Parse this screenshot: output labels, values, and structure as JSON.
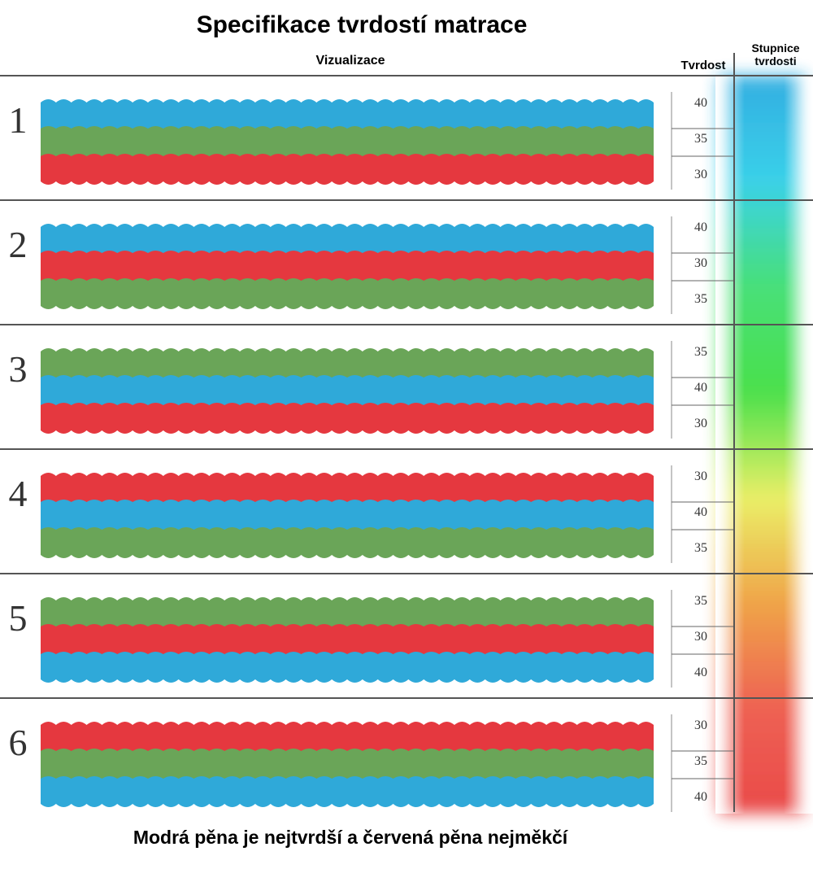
{
  "title": "Specifikace tvrdostí matrace",
  "headers": {
    "visualization": "Vizualizace",
    "hardness": "Tvrdost",
    "scale_line1": "Stupnice",
    "scale_line2": "tvrdosti"
  },
  "footer": "Modrá pěna je nejtvrdší a červená pěna nejměkčí",
  "colors": {
    "blue": "#2fa9d9",
    "green": "#6aa558",
    "red": "#e5383f",
    "divider": "#555555"
  },
  "hardness_by_color": {
    "blue": "40",
    "green": "35",
    "red": "30"
  },
  "mattresses": [
    {
      "number": "1",
      "layers": [
        "blue",
        "green",
        "red"
      ],
      "values": [
        "40",
        "35",
        "30"
      ]
    },
    {
      "number": "2",
      "layers": [
        "blue",
        "red",
        "green"
      ],
      "values": [
        "40",
        "30",
        "35"
      ]
    },
    {
      "number": "3",
      "layers": [
        "green",
        "blue",
        "red"
      ],
      "values": [
        "35",
        "40",
        "30"
      ]
    },
    {
      "number": "4",
      "layers": [
        "red",
        "blue",
        "green"
      ],
      "values": [
        "30",
        "40",
        "35"
      ]
    },
    {
      "number": "5",
      "layers": [
        "green",
        "red",
        "blue"
      ],
      "values": [
        "35",
        "30",
        "40"
      ]
    },
    {
      "number": "6",
      "layers": [
        "red",
        "green",
        "blue"
      ],
      "values": [
        "30",
        "35",
        "40"
      ]
    }
  ],
  "scale_gradient": [
    "#2aaae0",
    "#30cfe8",
    "#3fdf72",
    "#42df42",
    "#e9ef60",
    "#f0a040",
    "#ee5a4a",
    "#e84040"
  ]
}
